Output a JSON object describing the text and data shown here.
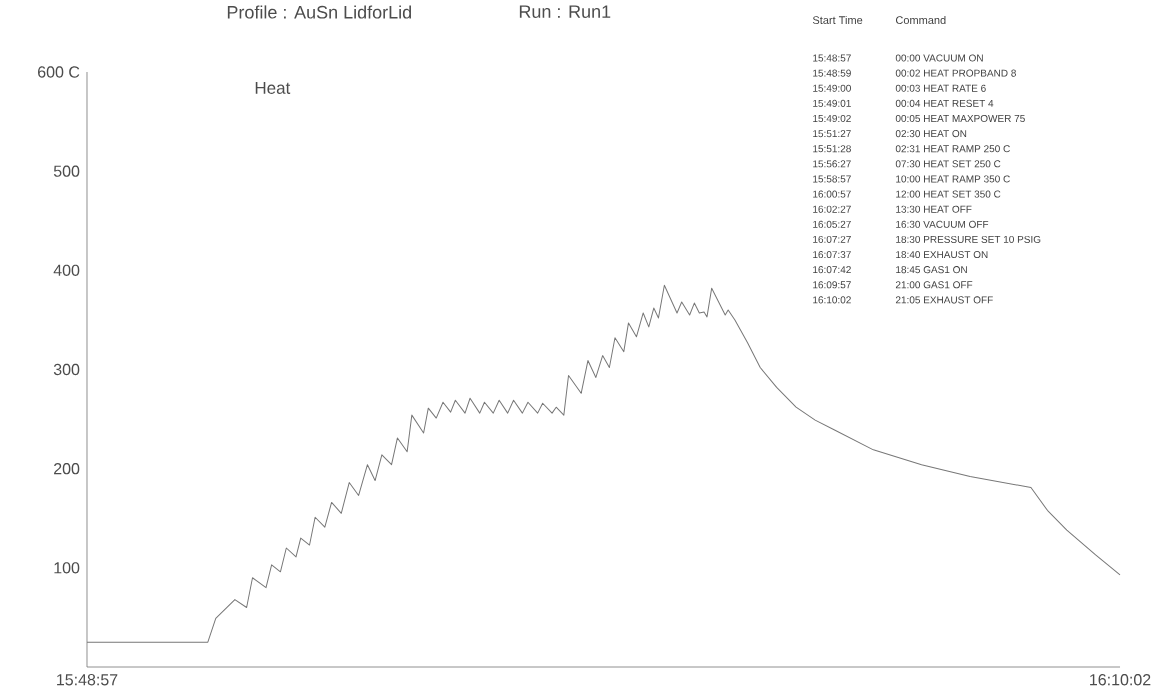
{
  "chart_data": {
    "type": "line",
    "title": "Profile : AuSn LidforLid",
    "subtitle": "Run : Run1",
    "x": [
      15.8158,
      15.8569,
      15.8596,
      15.8661,
      15.8701,
      15.8721,
      15.8767,
      15.8786,
      15.8816,
      15.8836,
      15.8869,
      15.8885,
      15.8915,
      15.8934,
      15.8967,
      15.899,
      15.9023,
      15.905,
      15.9082,
      15.9112,
      15.9138,
      15.9161,
      15.9194,
      15.9214,
      15.9247,
      15.9263,
      15.9303,
      15.9319,
      15.9346,
      15.9369,
      15.9395,
      15.9411,
      15.9444,
      15.9461,
      15.9494,
      15.951,
      15.954,
      15.956,
      15.9589,
      15.9609,
      15.9639,
      15.9658,
      15.9691,
      15.9708,
      15.974,
      15.9754,
      15.978,
      15.9796,
      15.9839,
      15.9862,
      15.9889,
      15.9912,
      15.9935,
      15.9954,
      15.9984,
      16.0,
      16.0027,
      16.005,
      16.0069,
      16.0086,
      16.0102,
      16.0122,
      16.0165,
      16.0181,
      16.0208,
      16.0224,
      16.0241,
      16.0257,
      16.0267,
      16.0283,
      16.0329,
      16.0339,
      16.0362,
      16.0405,
      16.0448,
      16.0504,
      16.057,
      16.0635,
      16.0701,
      16.0833,
      16.0997,
      16.1162,
      16.1369,
      16.1425,
      16.1491,
      16.1589,
      16.1672
    ],
    "series": [
      {
        "name": "Heat",
        "color": "#777777",
        "values": [
          25,
          25,
          49,
          68,
          60,
          90,
          80,
          103,
          96,
          120,
          111,
          130,
          123,
          151,
          141,
          166,
          155,
          186,
          173,
          204,
          188,
          214,
          204,
          231,
          217,
          254,
          236,
          261,
          251,
          267,
          257,
          269,
          256,
          271,
          256,
          267,
          256,
          269,
          256,
          269,
          256,
          267,
          256,
          266,
          256,
          262,
          254,
          294,
          276,
          309,
          292,
          314,
          302,
          332,
          318,
          347,
          333,
          357,
          343,
          362,
          352,
          385,
          357,
          368,
          355,
          367,
          357,
          358,
          353,
          382,
          355,
          360,
          350,
          327,
          302,
          282,
          262,
          249,
          239,
          219,
          204,
          192,
          181,
          158,
          138,
          113,
          93
        ]
      }
    ],
    "xlim": [
      15.8158,
      16.1672
    ],
    "xticks": [
      {
        "value": 15.8158,
        "label": "15:48:57"
      },
      {
        "value": 16.1672,
        "label": "16:10:02"
      }
    ],
    "ylim": [
      0,
      600
    ],
    "yticks": [
      100,
      200,
      300,
      400,
      500,
      {
        "value": 600,
        "label": "600 C"
      }
    ],
    "annotations": [
      "Start Time",
      "Command",
      "15:48:57",
      "00:00 VACUUM ON",
      "15:48:59",
      "00:02 HEAT PROPBAND 8",
      "15:49:00",
      "00:03 HEAT RATE 6",
      "15:49:01",
      "00:04 HEAT RESET 4",
      "15:49:02",
      "00:05 HEAT MAXPOWER 75",
      "15:51:27",
      "02:30 HEAT ON",
      "15:51:28",
      "02:31 HEAT RAMP 250 C",
      "15:56:27",
      "07:30 HEAT SET 250 C",
      "15:58:57",
      "10:00 HEAT RAMP 350 C",
      "16:00:57",
      "12:00 HEAT SET 350 C",
      "16:02:27",
      "13:30 HEAT OFF",
      "16:05:27",
      "16:30 VACUUM OFF",
      "16:07:27",
      "18:30 PRESSURE SET 10 PSIG",
      "16:07:37",
      "18:40 EXHAUST ON",
      "16:07:42",
      "18:45 GAS1 ON",
      "16:09:57",
      "21:00 GAS1 OFF",
      "16:10:02",
      "21:05 EXHAUST OFF"
    ],
    "legend": false
  }
}
